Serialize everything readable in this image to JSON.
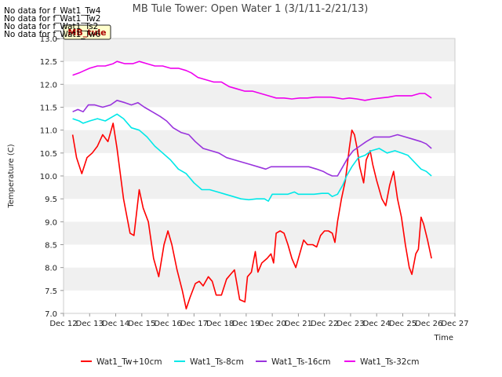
{
  "no_data_messages": [
    "No data for f_Wat1_Tw4",
    "No data for f_Wat1_Tw2",
    "No data for f_Wat1_Ts2",
    "No data for f_Wat1_Tw6"
  ],
  "badge_label": "MB_tule",
  "colors": {
    "red": "#ff0000",
    "cyan": "#00e8e8",
    "purple": "#9933dd",
    "magenta": "#ee00ee",
    "band": "#f0f0f0",
    "badge_bg": "#ffffcc"
  },
  "chart_data": {
    "type": "line",
    "title": "MB Tule Tower: Open Water 1 (3/1/11-2/21/13)",
    "xlabel": "Time",
    "ylabel": "Temperature (C)",
    "xlim": [
      12,
      27
    ],
    "ylim": [
      7.0,
      13.0
    ],
    "x_ticks": [
      12,
      13,
      14,
      15,
      16,
      17,
      18,
      19,
      20,
      21,
      22,
      23,
      24,
      25,
      26,
      27
    ],
    "x_tick_labels": [
      "Dec 12",
      "Dec 13",
      "Dec 14",
      "Dec 15",
      "Dec 16",
      "Dec 17",
      "Dec 18",
      "Dec 19",
      "Dec 20",
      "Dec 21",
      "Dec 22",
      "Dec 23",
      "Dec 24",
      "Dec 25",
      "Dec 26",
      "Dec 27"
    ],
    "y_ticks": [
      7.0,
      7.5,
      8.0,
      8.5,
      9.0,
      9.5,
      10.0,
      10.5,
      11.0,
      11.5,
      12.0,
      12.5,
      13.0
    ],
    "y_tick_labels": [
      "7.0",
      "7.5",
      "8.0",
      "8.5",
      "9.0",
      "9.5",
      "10.0",
      "10.5",
      "11.0",
      "11.5",
      "12.0",
      "12.5",
      "13.0"
    ],
    "grid": "alternating horizontal bands",
    "legend_position": "bottom",
    "series": [
      {
        "name": "Wat1_Tw+10cm",
        "color_key": "red",
        "points": [
          [
            12.35,
            10.9
          ],
          [
            12.5,
            10.4
          ],
          [
            12.7,
            10.05
          ],
          [
            12.9,
            10.4
          ],
          [
            13.1,
            10.5
          ],
          [
            13.3,
            10.65
          ],
          [
            13.5,
            10.9
          ],
          [
            13.7,
            10.75
          ],
          [
            13.9,
            11.15
          ],
          [
            14.05,
            10.6
          ],
          [
            14.3,
            9.5
          ],
          [
            14.55,
            8.75
          ],
          [
            14.7,
            8.7
          ],
          [
            14.9,
            9.7
          ],
          [
            15.05,
            9.3
          ],
          [
            15.25,
            9.0
          ],
          [
            15.45,
            8.2
          ],
          [
            15.65,
            7.8
          ],
          [
            15.85,
            8.5
          ],
          [
            16.0,
            8.8
          ],
          [
            16.15,
            8.5
          ],
          [
            16.35,
            7.95
          ],
          [
            16.55,
            7.5
          ],
          [
            16.7,
            7.1
          ],
          [
            16.85,
            7.35
          ],
          [
            17.05,
            7.65
          ],
          [
            17.2,
            7.7
          ],
          [
            17.35,
            7.6
          ],
          [
            17.55,
            7.8
          ],
          [
            17.7,
            7.7
          ],
          [
            17.85,
            7.4
          ],
          [
            18.05,
            7.4
          ],
          [
            18.25,
            7.75
          ],
          [
            18.4,
            7.85
          ],
          [
            18.55,
            7.95
          ],
          [
            18.75,
            7.3
          ],
          [
            18.95,
            7.25
          ],
          [
            19.05,
            7.8
          ],
          [
            19.2,
            7.9
          ],
          [
            19.35,
            8.35
          ],
          [
            19.45,
            7.9
          ],
          [
            19.6,
            8.1
          ],
          [
            19.8,
            8.2
          ],
          [
            19.95,
            8.3
          ],
          [
            20.05,
            8.1
          ],
          [
            20.15,
            8.75
          ],
          [
            20.3,
            8.8
          ],
          [
            20.45,
            8.75
          ],
          [
            20.6,
            8.5
          ],
          [
            20.75,
            8.2
          ],
          [
            20.9,
            8.0
          ],
          [
            21.05,
            8.3
          ],
          [
            21.2,
            8.6
          ],
          [
            21.35,
            8.5
          ],
          [
            21.55,
            8.5
          ],
          [
            21.7,
            8.45
          ],
          [
            21.85,
            8.7
          ],
          [
            22.0,
            8.8
          ],
          [
            22.15,
            8.8
          ],
          [
            22.3,
            8.75
          ],
          [
            22.4,
            8.55
          ],
          [
            22.5,
            9.0
          ],
          [
            22.65,
            9.5
          ],
          [
            22.8,
            9.9
          ],
          [
            22.95,
            10.6
          ],
          [
            23.05,
            11.0
          ],
          [
            23.15,
            10.9
          ],
          [
            23.25,
            10.6
          ],
          [
            23.35,
            10.2
          ],
          [
            23.5,
            9.85
          ],
          [
            23.6,
            10.35
          ],
          [
            23.75,
            10.55
          ],
          [
            23.85,
            10.25
          ],
          [
            24.0,
            9.9
          ],
          [
            24.2,
            9.5
          ],
          [
            24.35,
            9.35
          ],
          [
            24.5,
            9.8
          ],
          [
            24.65,
            10.1
          ],
          [
            24.8,
            9.5
          ],
          [
            24.95,
            9.1
          ],
          [
            25.1,
            8.5
          ],
          [
            25.25,
            8.0
          ],
          [
            25.35,
            7.85
          ],
          [
            25.5,
            8.3
          ],
          [
            25.6,
            8.4
          ],
          [
            25.7,
            9.1
          ],
          [
            25.8,
            8.95
          ],
          [
            25.95,
            8.6
          ],
          [
            26.1,
            8.2
          ]
        ]
      },
      {
        "name": "Wat1_Ts-8cm",
        "color_key": "cyan",
        "points": [
          [
            12.35,
            11.25
          ],
          [
            12.6,
            11.2
          ],
          [
            12.75,
            11.15
          ],
          [
            13.0,
            11.2
          ],
          [
            13.3,
            11.25
          ],
          [
            13.6,
            11.2
          ],
          [
            13.9,
            11.3
          ],
          [
            14.05,
            11.35
          ],
          [
            14.3,
            11.25
          ],
          [
            14.6,
            11.05
          ],
          [
            14.9,
            11.0
          ],
          [
            15.2,
            10.85
          ],
          [
            15.5,
            10.65
          ],
          [
            15.8,
            10.5
          ],
          [
            16.1,
            10.35
          ],
          [
            16.4,
            10.15
          ],
          [
            16.7,
            10.05
          ],
          [
            17.0,
            9.85
          ],
          [
            17.3,
            9.7
          ],
          [
            17.6,
            9.7
          ],
          [
            17.9,
            9.65
          ],
          [
            18.2,
            9.6
          ],
          [
            18.5,
            9.55
          ],
          [
            18.8,
            9.5
          ],
          [
            19.1,
            9.48
          ],
          [
            19.4,
            9.5
          ],
          [
            19.7,
            9.5
          ],
          [
            19.85,
            9.45
          ],
          [
            20.0,
            9.6
          ],
          [
            20.3,
            9.6
          ],
          [
            20.6,
            9.6
          ],
          [
            20.85,
            9.65
          ],
          [
            21.0,
            9.6
          ],
          [
            21.3,
            9.6
          ],
          [
            21.6,
            9.6
          ],
          [
            21.9,
            9.62
          ],
          [
            22.15,
            9.62
          ],
          [
            22.3,
            9.55
          ],
          [
            22.5,
            9.6
          ],
          [
            22.7,
            9.8
          ],
          [
            22.85,
            10.0
          ],
          [
            23.05,
            10.2
          ],
          [
            23.3,
            10.4
          ],
          [
            23.55,
            10.45
          ],
          [
            23.8,
            10.55
          ],
          [
            24.1,
            10.6
          ],
          [
            24.4,
            10.5
          ],
          [
            24.7,
            10.55
          ],
          [
            24.95,
            10.5
          ],
          [
            25.2,
            10.45
          ],
          [
            25.45,
            10.3
          ],
          [
            25.7,
            10.15
          ],
          [
            25.9,
            10.1
          ],
          [
            26.1,
            10.0
          ]
        ]
      },
      {
        "name": "Wat1_Ts-16cm",
        "color_key": "purple",
        "points": [
          [
            12.35,
            11.4
          ],
          [
            12.55,
            11.45
          ],
          [
            12.75,
            11.4
          ],
          [
            12.95,
            11.55
          ],
          [
            13.2,
            11.55
          ],
          [
            13.5,
            11.5
          ],
          [
            13.8,
            11.55
          ],
          [
            14.05,
            11.65
          ],
          [
            14.35,
            11.6
          ],
          [
            14.6,
            11.55
          ],
          [
            14.85,
            11.6
          ],
          [
            15.1,
            11.5
          ],
          [
            15.4,
            11.4
          ],
          [
            15.7,
            11.3
          ],
          [
            15.95,
            11.2
          ],
          [
            16.2,
            11.05
          ],
          [
            16.5,
            10.95
          ],
          [
            16.8,
            10.9
          ],
          [
            17.05,
            10.75
          ],
          [
            17.35,
            10.6
          ],
          [
            17.65,
            10.55
          ],
          [
            17.95,
            10.5
          ],
          [
            18.25,
            10.4
          ],
          [
            18.55,
            10.35
          ],
          [
            18.85,
            10.3
          ],
          [
            19.15,
            10.25
          ],
          [
            19.45,
            10.2
          ],
          [
            19.75,
            10.15
          ],
          [
            19.95,
            10.2
          ],
          [
            20.2,
            10.2
          ],
          [
            20.5,
            10.2
          ],
          [
            20.8,
            10.2
          ],
          [
            21.1,
            10.2
          ],
          [
            21.4,
            10.2
          ],
          [
            21.7,
            10.15
          ],
          [
            21.95,
            10.1
          ],
          [
            22.1,
            10.05
          ],
          [
            22.3,
            10.0
          ],
          [
            22.5,
            10.0
          ],
          [
            22.7,
            10.2
          ],
          [
            22.9,
            10.4
          ],
          [
            23.1,
            10.55
          ],
          [
            23.35,
            10.65
          ],
          [
            23.6,
            10.75
          ],
          [
            23.9,
            10.85
          ],
          [
            24.2,
            10.85
          ],
          [
            24.5,
            10.85
          ],
          [
            24.8,
            10.9
          ],
          [
            25.1,
            10.85
          ],
          [
            25.4,
            10.8
          ],
          [
            25.7,
            10.75
          ],
          [
            25.9,
            10.7
          ],
          [
            26.1,
            10.6
          ]
        ]
      },
      {
        "name": "Wat1_Ts-32cm",
        "color_key": "magenta",
        "points": [
          [
            12.35,
            12.2
          ],
          [
            12.6,
            12.25
          ],
          [
            12.8,
            12.3
          ],
          [
            13.0,
            12.35
          ],
          [
            13.3,
            12.4
          ],
          [
            13.6,
            12.4
          ],
          [
            13.9,
            12.45
          ],
          [
            14.05,
            12.5
          ],
          [
            14.35,
            12.45
          ],
          [
            14.65,
            12.45
          ],
          [
            14.9,
            12.5
          ],
          [
            15.2,
            12.45
          ],
          [
            15.5,
            12.4
          ],
          [
            15.8,
            12.4
          ],
          [
            16.1,
            12.35
          ],
          [
            16.4,
            12.35
          ],
          [
            16.7,
            12.3
          ],
          [
            16.9,
            12.25
          ],
          [
            17.15,
            12.15
          ],
          [
            17.45,
            12.1
          ],
          [
            17.75,
            12.05
          ],
          [
            18.05,
            12.05
          ],
          [
            18.35,
            11.95
          ],
          [
            18.65,
            11.9
          ],
          [
            18.95,
            11.85
          ],
          [
            19.25,
            11.85
          ],
          [
            19.55,
            11.8
          ],
          [
            19.85,
            11.75
          ],
          [
            20.15,
            11.7
          ],
          [
            20.45,
            11.7
          ],
          [
            20.75,
            11.68
          ],
          [
            21.05,
            11.7
          ],
          [
            21.35,
            11.7
          ],
          [
            21.65,
            11.72
          ],
          [
            21.95,
            11.72
          ],
          [
            22.25,
            11.72
          ],
          [
            22.5,
            11.7
          ],
          [
            22.7,
            11.68
          ],
          [
            22.95,
            11.7
          ],
          [
            23.25,
            11.68
          ],
          [
            23.55,
            11.65
          ],
          [
            23.85,
            11.68
          ],
          [
            24.15,
            11.7
          ],
          [
            24.45,
            11.72
          ],
          [
            24.75,
            11.75
          ],
          [
            25.05,
            11.75
          ],
          [
            25.35,
            11.75
          ],
          [
            25.65,
            11.8
          ],
          [
            25.85,
            11.8
          ],
          [
            26.1,
            11.7
          ]
        ]
      }
    ]
  }
}
